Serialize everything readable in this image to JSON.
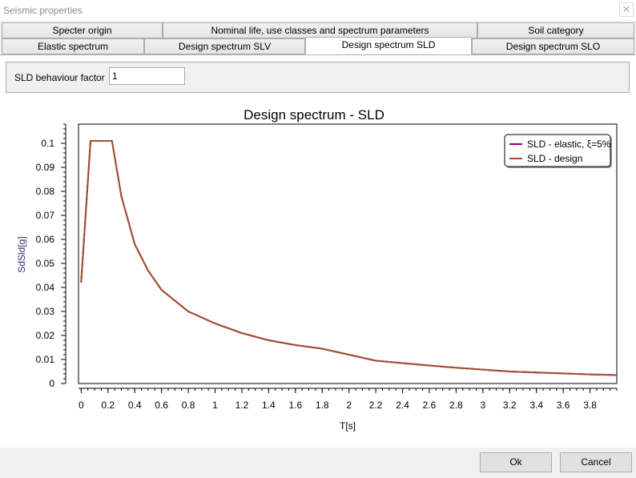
{
  "window": {
    "title": "Seismic properties",
    "close_glyph": "✕"
  },
  "tabs_row1": [
    "Specter origin",
    "Nominal life, use classes and spectrum parameters",
    "Soil category"
  ],
  "tabs_row2": [
    "Elastic spectrum",
    "Design spectrum SLV",
    "Design spectrum SLD",
    "Design spectrum SLO"
  ],
  "active_tab": "Design spectrum SLD",
  "form": {
    "behaviour_factor_label": "SLD behaviour factor",
    "behaviour_factor_value": "1"
  },
  "buttons": {
    "ok": "Ok",
    "cancel": "Cancel"
  },
  "chart_data": {
    "type": "line",
    "title": "Design spectrum - SLD",
    "xlabel": "T[s]",
    "ylabel": "SdSld[g]",
    "xlim": [
      -0.02,
      4.0
    ],
    "ylim": [
      0,
      0.108
    ],
    "xticks": [
      0,
      0.2,
      0.4,
      0.6,
      0.8,
      1,
      1.2,
      1.4,
      1.6,
      1.8,
      2,
      2.2,
      2.4,
      2.6,
      2.8,
      3,
      3.2,
      3.4,
      3.6,
      3.8
    ],
    "yticks": [
      0,
      0.01,
      0.02,
      0.03,
      0.04,
      0.05,
      0.06,
      0.07,
      0.08,
      0.09,
      0.1
    ],
    "legend_position": "top-right",
    "series": [
      {
        "name": "SLD - elastic, ξ=5%",
        "color": "#8b008b",
        "x": [
          0,
          0.07,
          0.23,
          0.3,
          0.4,
          0.5,
          0.6,
          0.8,
          1.0,
          1.2,
          1.4,
          1.6,
          1.8,
          2.0,
          2.2,
          2.4,
          2.6,
          2.8,
          3.0,
          3.2,
          3.4,
          3.6,
          3.8,
          4.0
        ],
        "values": [
          0.042,
          0.101,
          0.101,
          0.078,
          0.058,
          0.047,
          0.039,
          0.03,
          0.025,
          0.021,
          0.018,
          0.016,
          0.0145,
          0.012,
          0.0095,
          0.0085,
          0.0075,
          0.0066,
          0.0058,
          0.005,
          0.0046,
          0.0042,
          0.0038,
          0.0035
        ]
      },
      {
        "name": "SLD - design",
        "color": "#a0522d",
        "x": [
          0,
          0.07,
          0.23,
          0.3,
          0.4,
          0.5,
          0.6,
          0.8,
          1.0,
          1.2,
          1.4,
          1.6,
          1.8,
          2.0,
          2.2,
          2.4,
          2.6,
          2.8,
          3.0,
          3.2,
          3.4,
          3.6,
          3.8,
          4.0
        ],
        "values": [
          0.042,
          0.101,
          0.101,
          0.078,
          0.058,
          0.047,
          0.039,
          0.03,
          0.025,
          0.021,
          0.018,
          0.016,
          0.0145,
          0.012,
          0.0095,
          0.0085,
          0.0075,
          0.0066,
          0.0058,
          0.005,
          0.0046,
          0.0042,
          0.0038,
          0.0035
        ]
      }
    ]
  }
}
